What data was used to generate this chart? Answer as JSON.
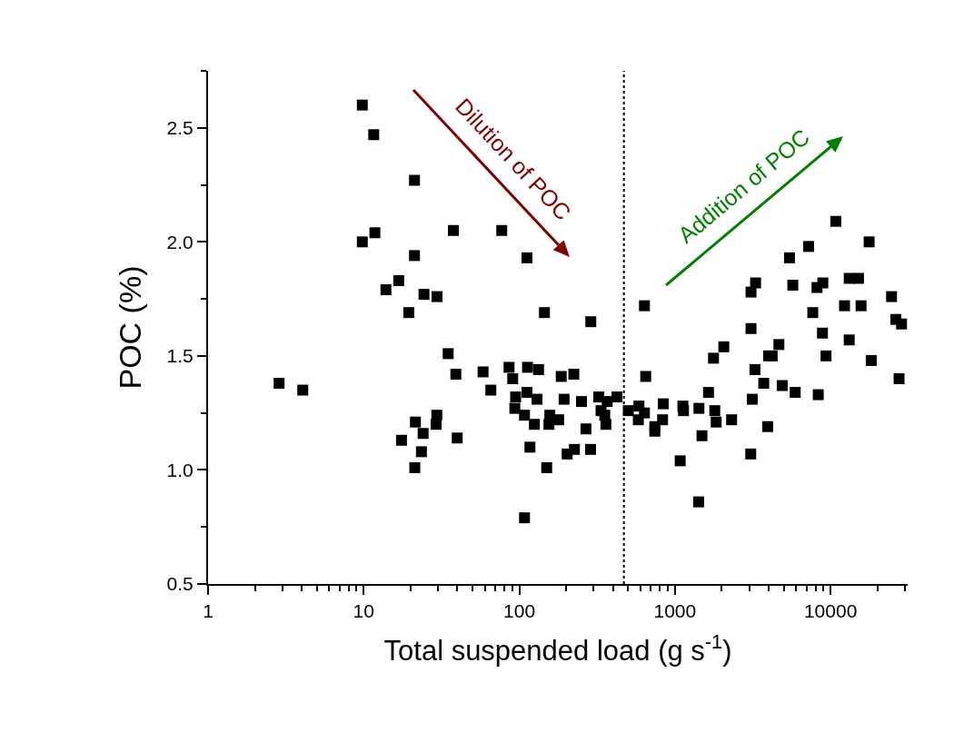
{
  "chart_data": {
    "type": "scatter",
    "xlabel": "Total suspended load (g s$^{-1}$)",
    "ylabel": "POC (%)",
    "log": "x",
    "xlim": [
      1,
      31300
    ],
    "xticks": [
      1,
      10,
      100,
      1000,
      10000
    ],
    "ylim": [
      0.5,
      2.75
    ],
    "yticks": [
      {
        "value": 0.5,
        "label": "0.5"
      },
      {
        "value": 1.0,
        "label": "1.0"
      },
      {
        "value": 1.5,
        "label": "1.5"
      },
      {
        "value": 2.0,
        "label": "2.0"
      },
      {
        "value": 2.5,
        "label": "2.5"
      }
    ],
    "marker": "square",
    "ref_lines": [
      {
        "axis": "x",
        "value": 470,
        "line_style": "dotted",
        "color": "#000000"
      }
    ],
    "annotations": [
      "Dilution of POC",
      "Addition of POC"
    ],
    "series": [
      {
        "color": "#000000",
        "x": [
          9.8,
          11.6,
          21.2,
          37.7,
          11.8,
          9.8,
          21.2,
          16.8,
          13.9,
          24.4,
          29.6,
          19.5,
          2.86,
          4.06,
          34.9,
          39.1,
          21.5,
          29.5,
          29.2,
          24.1,
          17.5,
          39.9,
          23.5,
          21.3,
          77.1,
          112,
          145,
          288,
          637,
          58.5,
          85.9,
          90.7,
          65.6,
          113,
          133,
          186,
          224,
          649,
          94.7,
          112,
          130,
          194,
          251,
          324,
          367,
          424,
          93.6,
          108,
          125,
          157,
          179,
          155,
          335,
          354,
          360,
          268,
          117,
          203,
          226,
          287,
          150,
          108,
          502,
          587,
          637,
          582,
          841,
          833,
          743,
          743,
          1125,
          1135,
          1426,
          1644,
          1492,
          1081,
          1420,
          7690,
          3083,
          2061,
          1770,
          4655,
          4000,
          4217,
          3268,
          3722,
          4891,
          5927,
          8337,
          3140,
          3945,
          3069,
          1803,
          1841,
          2313,
          8870,
          9355,
          13180,
          18270,
          27560,
          26300,
          28580,
          10810,
          17700,
          7230,
          5446,
          3299,
          3083,
          5720,
          8180,
          8920,
          13180,
          15130,
          24660,
          12300,
          15710
        ],
        "values": [
          2.6,
          2.47,
          2.27,
          2.05,
          2.04,
          2.0,
          1.94,
          1.83,
          1.79,
          1.77,
          1.76,
          1.69,
          1.38,
          1.35,
          1.51,
          1.42,
          1.21,
          1.24,
          1.2,
          1.16,
          1.13,
          1.14,
          1.08,
          1.01,
          2.05,
          1.93,
          1.69,
          1.65,
          1.72,
          1.43,
          1.45,
          1.4,
          1.35,
          1.45,
          1.44,
          1.41,
          1.42,
          1.41,
          1.32,
          1.34,
          1.31,
          1.31,
          1.3,
          1.32,
          1.3,
          1.32,
          1.27,
          1.24,
          1.2,
          1.24,
          1.22,
          1.2,
          1.26,
          1.24,
          1.2,
          1.18,
          1.1,
          1.07,
          1.09,
          1.09,
          1.01,
          0.79,
          1.26,
          1.28,
          1.25,
          1.22,
          1.29,
          1.22,
          1.19,
          1.17,
          1.28,
          1.26,
          1.27,
          1.34,
          1.15,
          1.04,
          0.86,
          1.69,
          1.62,
          1.54,
          1.49,
          1.55,
          1.5,
          1.5,
          1.44,
          1.38,
          1.37,
          1.34,
          1.33,
          1.31,
          1.19,
          1.07,
          1.26,
          1.21,
          1.22,
          1.6,
          1.5,
          1.57,
          1.48,
          1.4,
          1.66,
          1.64,
          2.09,
          2.0,
          1.98,
          1.93,
          1.82,
          1.78,
          1.81,
          1.8,
          1.82,
          1.84,
          1.84,
          1.76,
          1.72,
          1.72
        ]
      }
    ]
  }
}
